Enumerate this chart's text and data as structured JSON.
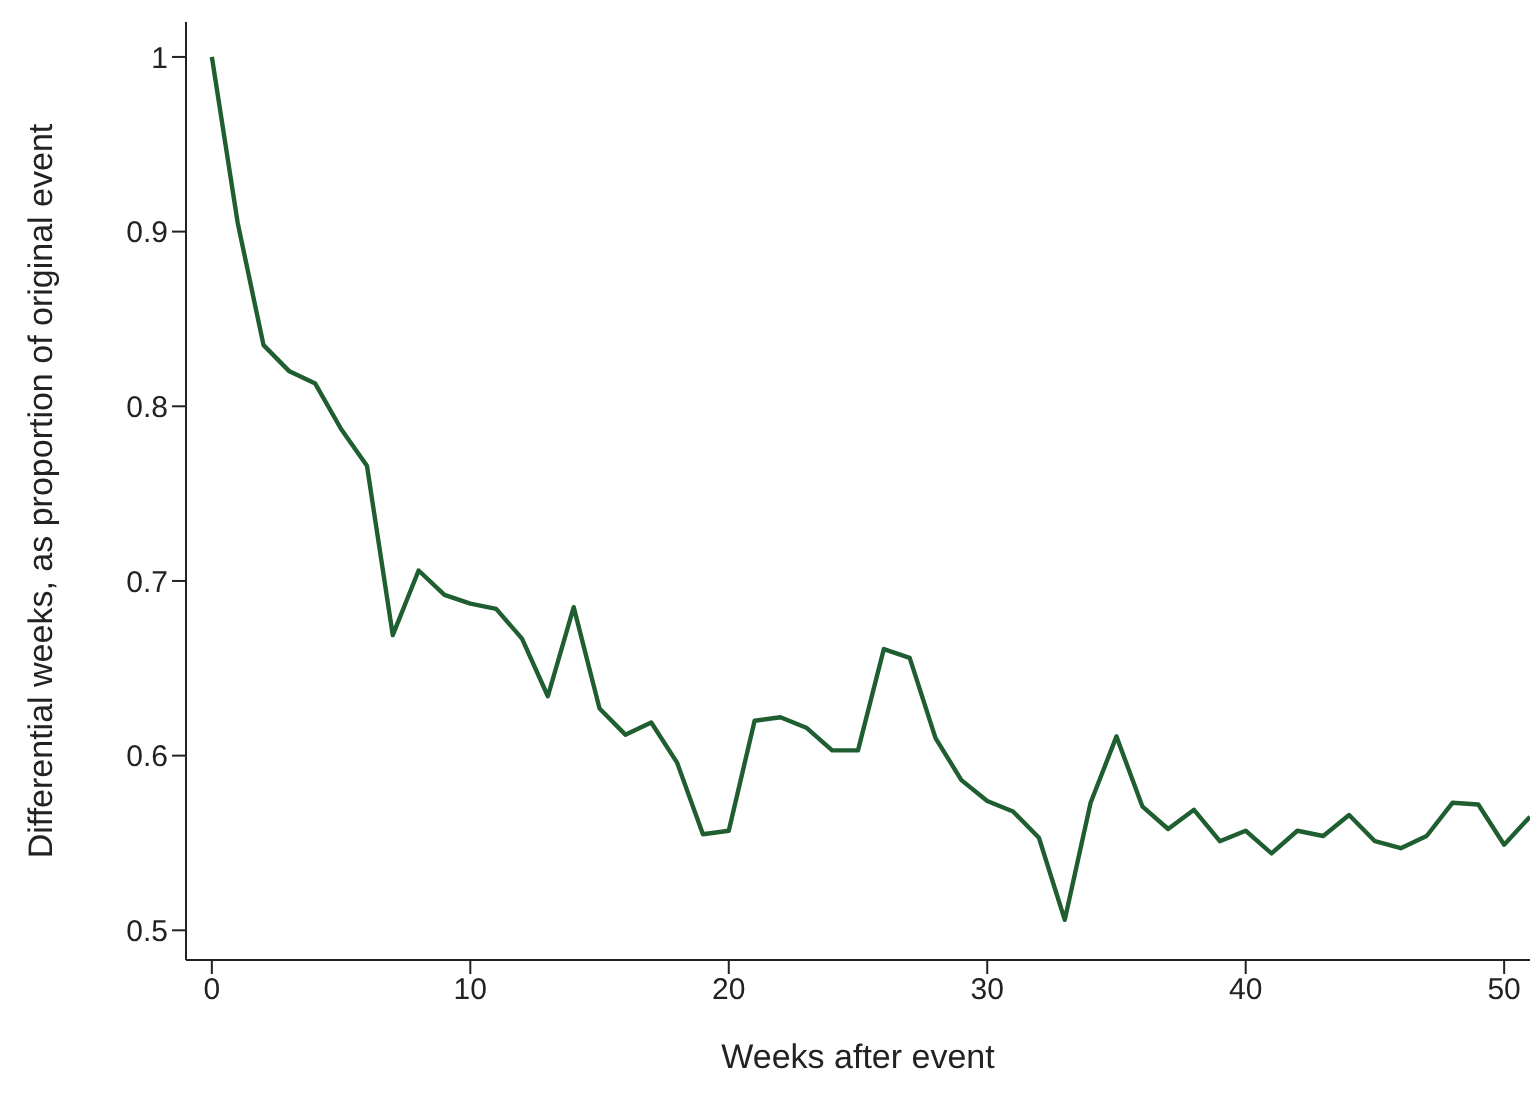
{
  "chart_data": {
    "type": "line",
    "xlabel": "Weeks after event",
    "ylabel": "Differential weeks, as proportion of original event",
    "x": [
      0,
      1,
      2,
      3,
      4,
      5,
      6,
      7,
      8,
      9,
      10,
      11,
      12,
      13,
      14,
      15,
      16,
      17,
      18,
      19,
      20,
      21,
      22,
      23,
      24,
      25,
      26,
      27,
      28,
      29,
      30,
      31,
      32,
      33,
      34,
      35,
      36,
      37,
      38,
      39,
      40,
      41,
      42,
      43,
      44,
      45,
      46,
      47,
      48,
      49,
      50,
      51
    ],
    "series": [
      {
        "color": "#1f5e30",
        "values": [
          1.0,
          0.905,
          0.835,
          0.82,
          0.813,
          0.787,
          0.766,
          0.669,
          0.706,
          0.692,
          0.687,
          0.684,
          0.667,
          0.634,
          0.685,
          0.627,
          0.612,
          0.619,
          0.596,
          0.555,
          0.557,
          0.62,
          0.622,
          0.616,
          0.603,
          0.603,
          0.661,
          0.656,
          0.61,
          0.586,
          0.574,
          0.568,
          0.553,
          0.506,
          0.573,
          0.611,
          0.571,
          0.558,
          0.569,
          0.551,
          0.557,
          0.544,
          0.557,
          0.554,
          0.566,
          0.551,
          0.547,
          0.554,
          0.573,
          0.572,
          0.549,
          0.565
        ]
      }
    ],
    "xlim": [
      -1,
      51
    ],
    "xticks": [
      0,
      10,
      20,
      30,
      40,
      50
    ],
    "ylim": [
      0.483,
      1.02
    ],
    "yticks": [
      0.5,
      0.6,
      0.7,
      0.8,
      0.9,
      1
    ],
    "grid": false,
    "legend": false,
    "marker": "none",
    "line_style": "solid"
  }
}
